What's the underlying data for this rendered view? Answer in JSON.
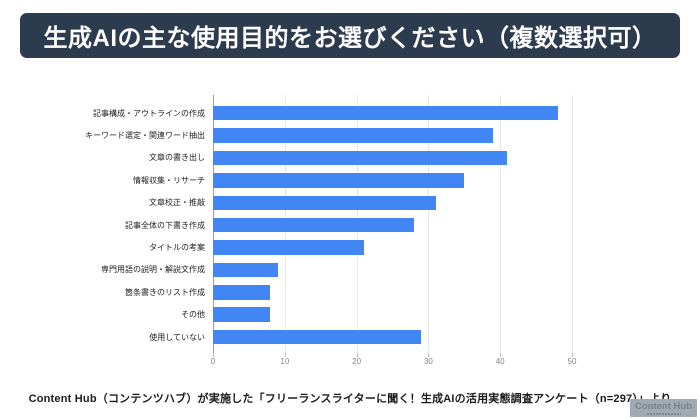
{
  "title": {
    "text": "生成AIの主な使用目的をお選びください（複数選択可）",
    "bg_color": "#2d3b4e",
    "text_color": "#ffffff"
  },
  "chart_data": {
    "type": "bar",
    "orientation": "horizontal",
    "title": "",
    "xlabel": "",
    "ylabel": "",
    "categories": [
      "記事構成・アウトラインの作成",
      "キーワード選定・関連ワード抽出",
      "文章の書き出し",
      "情報収集・リサーチ",
      "文章校正・推敲",
      "記事全体の下書き作成",
      "タイトルの考案",
      "専門用語の説明・解説文作成",
      "箇条書きのリスト作成",
      "その他",
      "使用していない"
    ],
    "values": [
      48,
      39,
      41,
      35,
      31,
      28,
      21,
      9,
      8,
      8,
      29
    ],
    "xlim": [
      0,
      50
    ],
    "xticks": [
      0,
      10,
      20,
      30,
      40,
      50
    ],
    "bar_color": "#4285f4",
    "grid": true,
    "gridline_color": "#e4e6e8",
    "legend": "none"
  },
  "footer": {
    "source_text": "Content Hub（コンテンツハブ）が実施した「フリーランスライターに聞く！生成AIの活用実態調査アンケート（n=297）」より"
  },
  "badge": {
    "text": "Content Hub",
    "bg_color": "#a2aab1",
    "text_color": "#78828c"
  }
}
